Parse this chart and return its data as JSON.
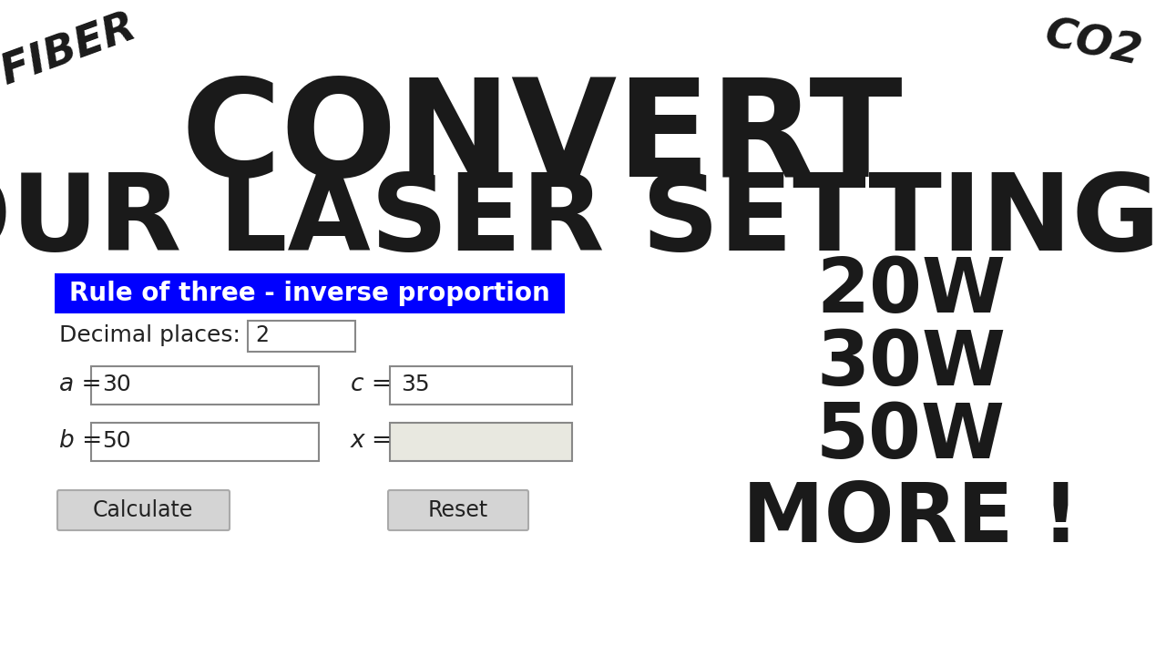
{
  "bg_color": "#ffffff",
  "title_line1": "CONVERT",
  "title_line2": "YOUR LASER SETTINGS",
  "fiber_label": "FIBER",
  "co2_label": "CO2",
  "header_color": "#1a1a1a",
  "blue_banner_text": "Rule of three - inverse proportion",
  "blue_banner_bg": "#0000ff",
  "blue_banner_fg": "#ffffff",
  "decimal_label": "Decimal places:",
  "decimal_value": "2",
  "a_label": "a =",
  "a_value": "30",
  "b_label": "b =",
  "b_value": "50",
  "c_label": "c =",
  "c_value": "35",
  "x_label": "x =",
  "x_value": "",
  "calc_button": "Calculate",
  "reset_button": "Reset",
  "wattage_labels": [
    "20W",
    "30W",
    "50W",
    "MORE !"
  ],
  "wattage_color": "#1a1a1a",
  "input_border": "#888888",
  "input_bg": "#ffffff",
  "x_input_bg": "#e8e8e0",
  "button_bg": "#d4d4d4",
  "button_border": "#aaaaaa",
  "fiber_rotation": 20,
  "co2_rotation": -12
}
